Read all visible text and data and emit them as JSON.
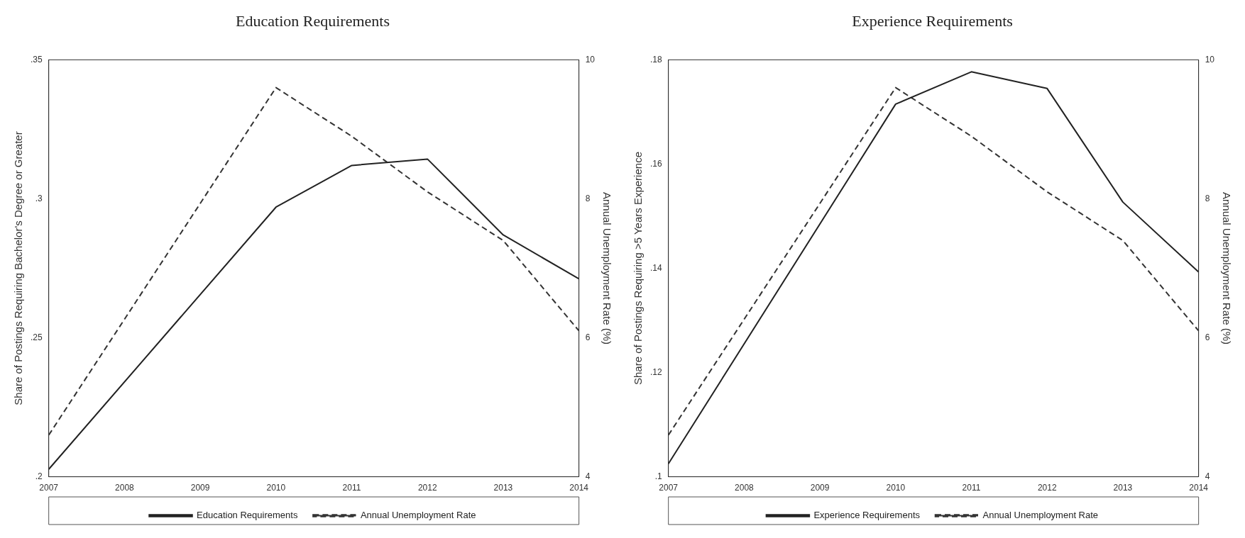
{
  "chart_data": [
    {
      "type": "line",
      "title": "Education Requirements",
      "ylabel": "Share of Postings Requiring Bachelor's Degree or Greater",
      "y2label": "Annual Unemployment Rate (%)",
      "categories": [
        "2007",
        "2008",
        "2009",
        "2010",
        "2011",
        "2012",
        "2013",
        "2014"
      ],
      "series": [
        {
          "name": "Education Requirements",
          "color": "#222222",
          "line_style": "solid",
          "values": [
            0.2027,
            null,
            null,
            0.297,
            0.312,
            0.3143,
            0.287,
            0.2712
          ]
        },
        {
          "name": "Annual Unemployment Rate",
          "color": "#333333",
          "line_style": "dashed",
          "axis": "y2",
          "values": [
            4.6,
            null,
            null,
            9.6,
            8.9,
            8.1,
            7.4,
            6.1
          ]
        }
      ],
      "ylim": [
        0.2,
        0.35
      ],
      "yticks": [
        {
          "value": 0.2,
          "label": ".2"
        },
        {
          "value": 0.25,
          "label": ".25"
        },
        {
          "value": 0.3,
          "label": ".3"
        },
        {
          "value": 0.35,
          "label": ".35"
        }
      ],
      "y2lim": [
        4,
        10
      ],
      "y2ticks": [
        4,
        6,
        8,
        10
      ],
      "legend": "bottom"
    },
    {
      "type": "line",
      "title": "Experience Requirements",
      "ylabel": "Share of Postings Requiring >5 Years Experience",
      "y2label": "Annual Unemployment Rate (%)",
      "categories": [
        "2007",
        "2008",
        "2009",
        "2010",
        "2011",
        "2012",
        "2013",
        "2014"
      ],
      "series": [
        {
          "name": "Experience Requirements",
          "color": "#222222",
          "line_style": "solid",
          "values": [
            0.1025,
            null,
            null,
            0.1715,
            0.1777,
            0.1745,
            0.1527,
            0.1393
          ]
        },
        {
          "name": "Annual Unemployment Rate",
          "color": "#333333",
          "line_style": "dashed",
          "axis": "y2",
          "values": [
            4.6,
            null,
            null,
            9.6,
            8.9,
            8.1,
            7.4,
            6.1
          ]
        }
      ],
      "ylim": [
        0.1,
        0.18
      ],
      "yticks": [
        {
          "value": 0.1,
          "label": ".1"
        },
        {
          "value": 0.12,
          "label": ".12"
        },
        {
          "value": 0.14,
          "label": ".14"
        },
        {
          "value": 0.16,
          "label": ".16"
        },
        {
          "value": 0.18,
          "label": ".18"
        }
      ],
      "y2lim": [
        4,
        10
      ],
      "y2ticks": [
        4,
        6,
        8,
        10
      ],
      "legend": "bottom"
    }
  ]
}
